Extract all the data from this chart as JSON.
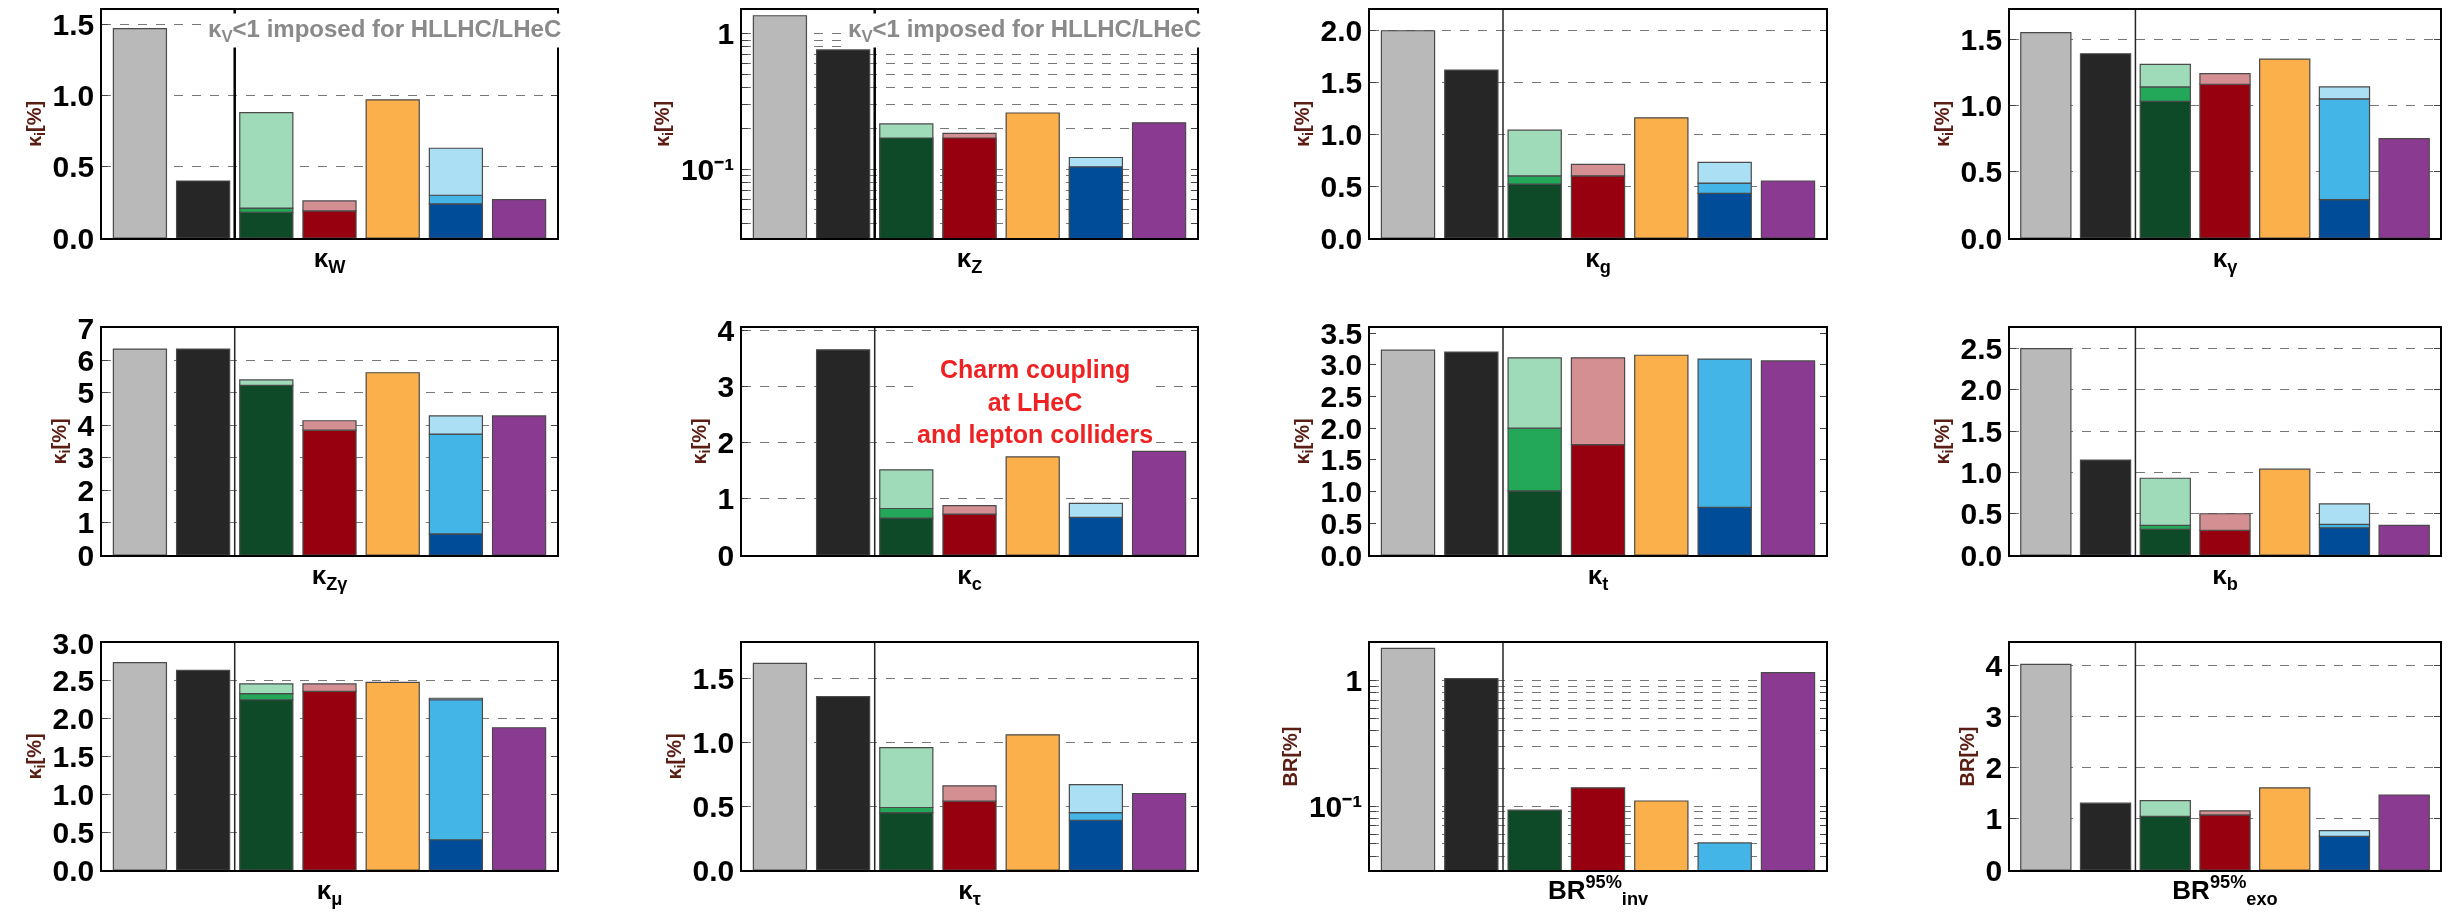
{
  "chart_data": [
    {
      "type": "bar",
      "stacked": true,
      "xlabel": "κ$_{W}$",
      "ylabel": "κ$_{i}$[%]",
      "grid": "y",
      "ylim": [
        0,
        1.6
      ],
      "yticks": [
        {
          "value": 0,
          "label": "0.0"
        },
        0.5,
        {
          "value": 1,
          "label": "1.0"
        },
        1.5
      ],
      "categories": [
        null,
        null,
        null,
        null,
        null,
        null,
        null
      ],
      "annotations": [
        "κ$_{V}$<1 imposed for HLLHC/LHeC"
      ],
      "series": [
        {
          "values": [
            1.47,
            0.4,
            0.18,
            0.19,
            0.97,
            0.24,
            0.27
          ],
          "colors": [
            "#b9b9b9",
            "#262626",
            "#0f4a28",
            "#96000f",
            "#fbb04b",
            "#004c99",
            "#8b3a91"
          ]
        },
        {
          "values": [
            null,
            null,
            0.03,
            null,
            null,
            0.06,
            null
          ],
          "colors": [
            null,
            null,
            "#23a85a",
            null,
            null,
            "#43b5e6",
            null
          ]
        },
        {
          "values": [
            null,
            null,
            0.67,
            0.07,
            null,
            0.33,
            null
          ],
          "colors": [
            null,
            null,
            "#9fdbb8",
            "#d48f92",
            null,
            "#aadff4",
            null
          ]
        }
      ]
    },
    {
      "type": "bar",
      "xlabel": "κ$_{Z}$",
      "ylabel": "κ$_{i}$[%]",
      "grid": "y",
      "log": "y",
      "ylim": [
        0.031,
        1.5
      ],
      "yticks": [
        {
          "value": 0.04,
          "label": null
        },
        {
          "value": 0.05,
          "label": null
        },
        {
          "value": 0.06,
          "label": null
        },
        {
          "value": 0.07,
          "label": null
        },
        {
          "value": 0.08,
          "label": null
        },
        {
          "value": 0.09,
          "label": null
        },
        {
          "value": 0.1,
          "label": "10⁻¹"
        },
        {
          "value": 0.2,
          "label": null
        },
        {
          "value": 0.3,
          "label": null
        },
        {
          "value": 0.4,
          "label": null
        },
        {
          "value": 0.5,
          "label": null
        },
        {
          "value": 0.6,
          "label": null
        },
        {
          "value": 0.7,
          "label": null
        },
        {
          "value": 0.8,
          "label": null
        },
        {
          "value": 0.9,
          "label": null
        },
        1
      ],
      "categories": [
        null,
        null,
        null,
        null,
        null,
        null,
        null
      ],
      "annotations": [
        "κ$_{V}$<1 imposed for HLLHC/LHeC"
      ],
      "series": [
        {
          "values": [
            1.36,
            0.76,
            0.17,
            0.17,
            0.26,
            0.104,
            0.22
          ],
          "colors": [
            "#b9b9b9",
            "#262626",
            "#0f4a28",
            "#96000f",
            "#fbb04b",
            "#004c99",
            "#8b3a91"
          ]
        },
        {
          "values": [
            null,
            null,
            0.216,
            0.184,
            null,
            0.122,
            null
          ],
          "colors": [
            null,
            null,
            "#9fdbb8",
            "#d48f92",
            null,
            "#aadff4",
            null
          ]
        }
      ]
    },
    {
      "type": "bar",
      "stacked": true,
      "xlabel": "κ$_{g}$",
      "ylabel": "κ$_{i}$[%]",
      "grid": "y",
      "ylim": [
        0,
        2.2
      ],
      "yticks": [
        {
          "value": 0,
          "label": "0.0"
        },
        0.5,
        {
          "value": 1,
          "label": "1.0"
        },
        1.5,
        {
          "value": 2,
          "label": "2.0"
        }
      ],
      "categories": [
        null,
        null,
        null,
        null,
        null,
        null,
        null
      ],
      "series": [
        {
          "values": [
            2.0,
            1.62,
            0.52,
            0.6,
            1.16,
            0.43,
            0.55
          ],
          "colors": [
            "#b9b9b9",
            "#262626",
            "#0f4a28",
            "#96000f",
            "#fbb04b",
            "#004c99",
            "#8b3a91"
          ]
        },
        {
          "values": [
            null,
            null,
            0.08,
            null,
            null,
            0.1,
            null
          ],
          "colors": [
            null,
            null,
            "#23a85a",
            null,
            null,
            "#43b5e6",
            null
          ]
        },
        {
          "values": [
            null,
            null,
            0.44,
            0.11,
            null,
            0.2,
            null
          ],
          "colors": [
            null,
            null,
            "#9fdbb8",
            "#d48f92",
            null,
            "#aadff4",
            null
          ]
        }
      ]
    },
    {
      "type": "bar",
      "stacked": true,
      "xlabel": "κ$_{γ}$",
      "ylabel": "κ$_{i}$[%]",
      "grid": "y",
      "ylim": [
        0,
        1.72
      ],
      "yticks": [
        {
          "value": 0,
          "label": "0.0"
        },
        0.5,
        {
          "value": 1,
          "label": "1.0"
        },
        1.5
      ],
      "categories": [
        null,
        null,
        null,
        null,
        null,
        null,
        null
      ],
      "series": [
        {
          "values": [
            1.55,
            1.39,
            1.03,
            1.16,
            1.35,
            0.29,
            0.75
          ],
          "colors": [
            "#b9b9b9",
            "#262626",
            "#0f4a28",
            "#96000f",
            "#fbb04b",
            "#004c99",
            "#8b3a91"
          ]
        },
        {
          "values": [
            null,
            null,
            0.11,
            null,
            null,
            0.76,
            null
          ],
          "colors": [
            null,
            null,
            "#23a85a",
            null,
            null,
            "#43b5e6",
            null
          ]
        },
        {
          "values": [
            null,
            null,
            0.17,
            0.08,
            null,
            0.09,
            null
          ],
          "colors": [
            null,
            null,
            "#9fdbb8",
            "#d48f92",
            null,
            "#aadff4",
            null
          ]
        }
      ]
    },
    {
      "type": "bar",
      "stacked": true,
      "xlabel": "κ$_{Zγ}$",
      "ylabel": "κ$_{i}$[%]",
      "grid": "y",
      "ylim": [
        0,
        7
      ],
      "yticks": [
        0,
        1,
        2,
        3,
        4,
        5,
        6,
        7
      ],
      "categories": [
        null,
        null,
        null,
        null,
        null,
        null,
        null
      ],
      "series": [
        {
          "values": [
            6.35,
            6.35,
            5.23,
            3.85,
            5.62,
            0.65,
            4.29
          ],
          "colors": [
            "#b9b9b9",
            "#262626",
            "#0f4a28",
            "#96000f",
            "#fbb04b",
            "#004c99",
            "#8b3a91"
          ]
        },
        {
          "values": [
            null,
            null,
            null,
            null,
            null,
            3.08,
            null
          ],
          "colors": [
            null,
            null,
            null,
            null,
            null,
            "#43b5e6",
            null
          ]
        },
        {
          "values": [
            null,
            null,
            0.17,
            0.29,
            null,
            0.56,
            null
          ],
          "colors": [
            null,
            null,
            "#9fdbb8",
            "#d48f92",
            null,
            "#aadff4",
            null
          ]
        }
      ]
    },
    {
      "type": "bar",
      "stacked": true,
      "xlabel": "κ$_{c}$",
      "ylabel": "κ$_{i}$[%]",
      "grid": "y",
      "ylim": [
        0,
        4.05
      ],
      "yticks": [
        0,
        1,
        2,
        3,
        4
      ],
      "categories": [
        null,
        null,
        null,
        null,
        null,
        null,
        null
      ],
      "annotations": [
        "Charm coupling\nat LHeC\nand lepton colliders"
      ],
      "series": [
        {
          "values": [
            null,
            3.66,
            0.66,
            0.73,
            1.75,
            0.67,
            1.85
          ],
          "colors": [
            null,
            "#262626",
            "#0f4a28",
            "#96000f",
            "#fbb04b",
            "#004c99",
            "#8b3a91"
          ]
        },
        {
          "values": [
            null,
            null,
            0.17,
            null,
            null,
            null,
            null
          ],
          "colors": [
            null,
            null,
            "#23a85a",
            null,
            null,
            null,
            null
          ]
        },
        {
          "values": [
            null,
            null,
            0.69,
            0.15,
            null,
            0.25,
            null
          ],
          "colors": [
            null,
            null,
            "#9fdbb8",
            "#d48f92",
            null,
            "#aadff4",
            null
          ]
        }
      ]
    },
    {
      "type": "bar",
      "stacked": true,
      "xlabel": "κ$_{t}$",
      "ylabel": "κ$_{i}$[%]",
      "ylim": [
        0,
        3.58
      ],
      "yticks": [
        {
          "value": 0,
          "label": "0.0"
        },
        0.5,
        {
          "value": 1,
          "label": "1.0"
        },
        1.5,
        {
          "value": 2,
          "label": "2.0"
        },
        2.5,
        {
          "value": 3,
          "label": "3.0"
        },
        3.5
      ],
      "categories": [
        null,
        null,
        null,
        null,
        null,
        null,
        null
      ],
      "series": [
        {
          "values": [
            3.23,
            3.2,
            1.01,
            1.74,
            3.15,
            0.75,
            3.06
          ],
          "colors": [
            "#b9b9b9",
            "#262626",
            "#0f4a28",
            "#96000f",
            "#fbb04b",
            "#004c99",
            "#8b3a91"
          ]
        },
        {
          "values": [
            null,
            null,
            0.99,
            null,
            null,
            2.34,
            null
          ],
          "colors": [
            null,
            null,
            "#23a85a",
            null,
            null,
            "#43b5e6",
            null
          ]
        },
        {
          "values": [
            null,
            null,
            1.11,
            1.37,
            null,
            null,
            null
          ],
          "colors": [
            null,
            null,
            "#9fdbb8",
            "#d48f92",
            null,
            null,
            null
          ]
        }
      ]
    },
    {
      "type": "bar",
      "stacked": true,
      "xlabel": "κ$_{b}$",
      "ylabel": "κ$_{i}$[%]",
      "grid": "y",
      "ylim": [
        0,
        2.75
      ],
      "yticks": [
        {
          "value": 0,
          "label": "0.0"
        },
        0.5,
        {
          "value": 1,
          "label": "1.0"
        },
        1.5,
        {
          "value": 2,
          "label": "2.0"
        },
        2.5
      ],
      "categories": [
        null,
        null,
        null,
        null,
        null,
        null,
        null
      ],
      "series": [
        {
          "values": [
            2.5,
            1.15,
            0.31,
            0.3,
            1.04,
            0.33,
            0.36
          ],
          "colors": [
            "#b9b9b9",
            "#262626",
            "#0f4a28",
            "#96000f",
            "#fbb04b",
            "#004c99",
            "#8b3a91"
          ]
        },
        {
          "values": [
            null,
            null,
            0.05,
            null,
            null,
            0.04,
            null
          ],
          "colors": [
            null,
            null,
            "#23a85a",
            null,
            null,
            "#43b5e6",
            null
          ]
        },
        {
          "values": [
            null,
            null,
            0.57,
            0.2,
            null,
            0.25,
            null
          ],
          "colors": [
            null,
            null,
            "#9fdbb8",
            "#d48f92",
            null,
            "#aadff4",
            null
          ]
        }
      ]
    },
    {
      "type": "bar",
      "stacked": true,
      "xlabel": "κ$_{μ}$",
      "ylabel": "κ$_{i}$[%]",
      "grid": "y",
      "ylim": [
        0,
        3.0
      ],
      "yticks": [
        {
          "value": 0,
          "label": "0.0"
        },
        0.5,
        {
          "value": 1,
          "label": "1.0"
        },
        1.5,
        {
          "value": 2,
          "label": "2.0"
        },
        2.5,
        {
          "value": 3,
          "label": "3.0"
        }
      ],
      "categories": [
        null,
        null,
        null,
        null,
        null,
        null,
        null
      ],
      "series": [
        {
          "values": [
            2.74,
            2.64,
            2.25,
            2.36,
            2.48,
            0.4,
            1.88
          ],
          "colors": [
            "#b9b9b9",
            "#262626",
            "#0f4a28",
            "#96000f",
            "#fbb04b",
            "#004c99",
            "#8b3a91"
          ]
        },
        {
          "values": [
            null,
            null,
            0.08,
            null,
            null,
            1.85,
            null
          ],
          "colors": [
            null,
            null,
            "#23a85a",
            null,
            null,
            "#43b5e6",
            null
          ]
        },
        {
          "values": [
            null,
            null,
            0.13,
            0.1,
            null,
            0.02,
            null
          ],
          "colors": [
            null,
            null,
            "#9fdbb8",
            "#d48f92",
            null,
            "#aadff4",
            null
          ]
        }
      ]
    },
    {
      "type": "bar",
      "stacked": true,
      "xlabel": "κ$_{τ}$",
      "ylabel": "κ$_{i}$[%]",
      "grid": "y",
      "ylim": [
        0,
        1.78
      ],
      "yticks": [
        {
          "value": 0,
          "label": "0.0"
        },
        0.5,
        {
          "value": 1,
          "label": "1.0"
        },
        1.5
      ],
      "categories": [
        null,
        null,
        null,
        null,
        null,
        null,
        null
      ],
      "series": [
        {
          "values": [
            1.62,
            1.36,
            0.45,
            0.54,
            1.06,
            0.39,
            0.6
          ],
          "colors": [
            "#b9b9b9",
            "#262626",
            "#0f4a28",
            "#96000f",
            "#fbb04b",
            "#004c99",
            "#8b3a91"
          ]
        },
        {
          "values": [
            null,
            null,
            0.04,
            null,
            null,
            0.06,
            null
          ],
          "colors": [
            null,
            null,
            "#23a85a",
            null,
            null,
            "#43b5e6",
            null
          ]
        },
        {
          "values": [
            null,
            null,
            0.47,
            0.12,
            null,
            0.22,
            null
          ],
          "colors": [
            null,
            null,
            "#9fdbb8",
            "#d48f92",
            null,
            "#aadff4",
            null
          ]
        }
      ]
    },
    {
      "type": "bar",
      "xlabel": "BR$^{95%}$$_{inv}$",
      "ylabel": "BR[%]",
      "grid": "y",
      "log": "y",
      "ylim": [
        0.031,
        2.0
      ],
      "yticks": [
        {
          "value": 0.04,
          "label": null
        },
        {
          "value": 0.05,
          "label": null
        },
        {
          "value": 0.06,
          "label": null
        },
        {
          "value": 0.07,
          "label": null
        },
        {
          "value": 0.08,
          "label": null
        },
        {
          "value": 0.09,
          "label": null
        },
        {
          "value": 0.1,
          "label": "10⁻¹"
        },
        {
          "value": 0.2,
          "label": null
        },
        {
          "value": 0.3,
          "label": null
        },
        {
          "value": 0.4,
          "label": null
        },
        {
          "value": 0.5,
          "label": null
        },
        {
          "value": 0.6,
          "label": null
        },
        {
          "value": 0.7,
          "label": null
        },
        {
          "value": 0.8,
          "label": null
        },
        {
          "value": 0.9,
          "label": null
        },
        1
      ],
      "categories": [
        null,
        null,
        null,
        null,
        null,
        null,
        null
      ],
      "series": [
        {
          "values": [
            1.81,
            1.04,
            0.093,
            0.14,
            0.11,
            0.051,
            1.16
          ],
          "colors": [
            "#b9b9b9",
            "#262626",
            "#0f4a28",
            "#96000f",
            "#fbb04b",
            "#43b5e6",
            "#8b3a91"
          ]
        }
      ]
    },
    {
      "type": "bar",
      "stacked": true,
      "xlabel": "BR$^{95%}$$_{exo}$",
      "ylabel": "BR[%]",
      "grid": "y",
      "ylim": [
        0,
        4.45
      ],
      "yticks": [
        0,
        1,
        2,
        3,
        4
      ],
      "categories": [
        null,
        null,
        null,
        null,
        null,
        null,
        null
      ],
      "series": [
        {
          "values": [
            4.03,
            1.31,
            1.05,
            1.08,
            1.61,
            0.66,
            1.47
          ],
          "colors": [
            "#b9b9b9",
            "#262626",
            "#0f4a28",
            "#96000f",
            "#fbb04b",
            "#004c99",
            "#8b3a91"
          ]
        },
        {
          "values": [
            null,
            null,
            0.31,
            0.08,
            null,
            0.11,
            null
          ],
          "colors": [
            null,
            null,
            "#9fdbb8",
            "#d48f92",
            null,
            "#aadff4",
            null
          ]
        }
      ]
    }
  ]
}
